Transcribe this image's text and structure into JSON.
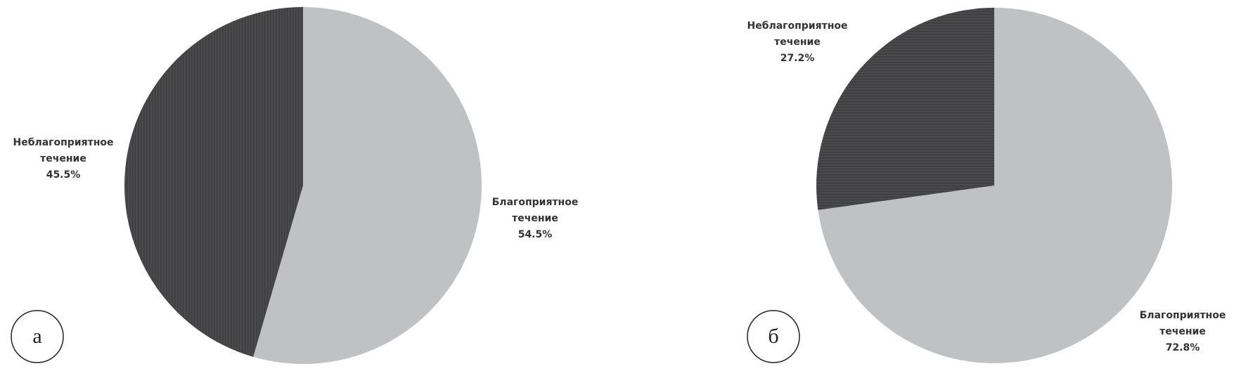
{
  "chart_data": [
    {
      "type": "pie",
      "panel_label": "а",
      "pattern": "vertical",
      "categories": [
        "Благоприятное течение",
        "Неблагоприятное течение"
      ],
      "values": [
        54.5,
        45.5
      ],
      "value_labels": [
        "54.5%",
        "45.5%"
      ],
      "colors": [
        "#c0c1c3",
        "#4a4a4c"
      ]
    },
    {
      "type": "pie",
      "panel_label": "б",
      "pattern": "horizontal",
      "categories": [
        "Благоприятное течение",
        "Неблагоприятное течение"
      ],
      "values": [
        72.8,
        27.2
      ],
      "value_labels": [
        "72.8%",
        "27.2%"
      ],
      "colors": [
        "#c0c1c3",
        "#4a4a4c"
      ]
    }
  ]
}
